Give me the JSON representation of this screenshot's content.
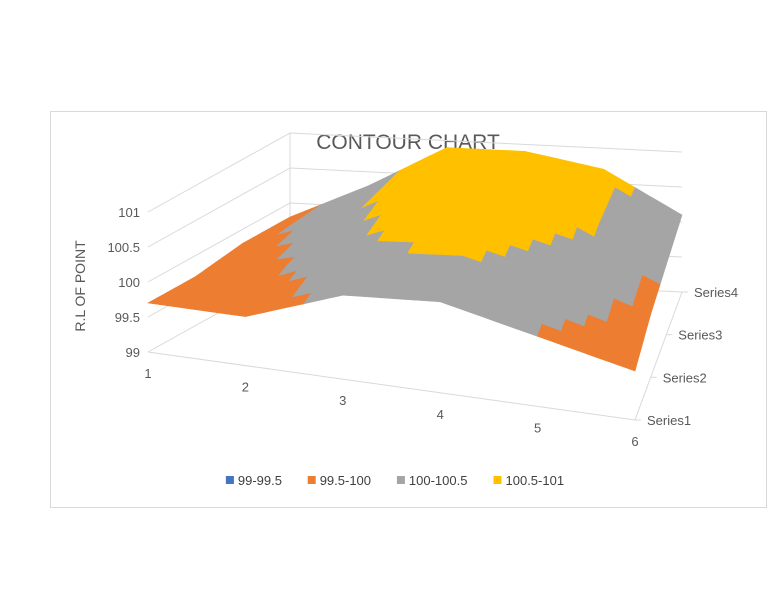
{
  "chart_data": {
    "type": "surface-contour-3d",
    "title": "CONTOUR CHART",
    "ylabel": "R.L OF POINT",
    "zlim": [
      99,
      101
    ],
    "z_ticks": [
      "99",
      "99.5",
      "100",
      "100.5",
      "101"
    ],
    "categories": [
      "1",
      "2",
      "3",
      "4",
      "5",
      "6"
    ],
    "series_names": [
      "Series1",
      "Series2",
      "Series3",
      "Series4"
    ],
    "values": [
      [
        99.7,
        99.7,
        100.2,
        100.3,
        100.0,
        99.7
      ],
      [
        99.7,
        100.0,
        100.5,
        100.6,
        100.3,
        99.9
      ],
      [
        99.8,
        100.2,
        100.8,
        100.9,
        100.6,
        100.0
      ],
      [
        99.8,
        100.3,
        100.9,
        100.9,
        100.7,
        100.1
      ]
    ],
    "bands": [
      {
        "name": "99-99.5",
        "range": [
          99,
          99.5
        ],
        "color": "#4472C4"
      },
      {
        "name": "99.5-100",
        "range": [
          99.5,
          100
        ],
        "color": "#ED7D31"
      },
      {
        "name": "100-100.5",
        "range": [
          100,
          100.5
        ],
        "color": "#A5A5A5"
      },
      {
        "name": "100.5-101",
        "range": [
          100.5,
          101
        ],
        "color": "#FFC000"
      }
    ],
    "legend_position": "bottom"
  }
}
